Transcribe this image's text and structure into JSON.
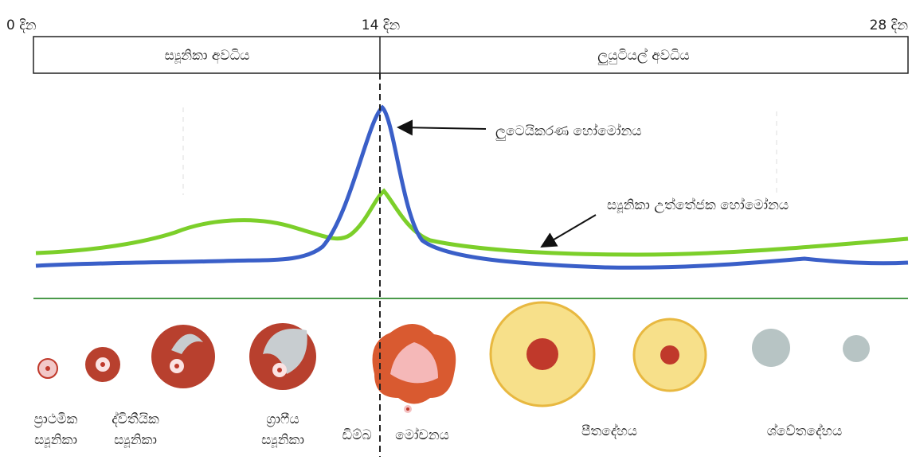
{
  "day_labels": [
    "0 දින",
    "14 දින",
    "28 දින"
  ],
  "phases": [
    "ස්‍යූනිකා අවධිය",
    "ලුයුටියල් අවධිය"
  ],
  "hormones": [
    {
      "label": "ලුටෙයිකරණ හෝමෝනය",
      "color": "#3a5fc8"
    },
    {
      "label": "ස්‍යූනිකා උත්තේජක හෝමෝනය",
      "color": "#7ccf2a"
    }
  ],
  "stages": [
    {
      "lines": [
        "ප්‍රාථමික",
        "ස්‍යූනිකා"
      ]
    },
    {
      "lines": [
        "ද්විතීයික",
        "ස්‍යූනිකා"
      ]
    },
    {
      "lines": [
        "ග්‍රාෆීය",
        "ස්‍යූනිකා"
      ]
    },
    {
      "lines": [
        "ඩිම්බ"
      ]
    },
    {
      "lines": [
        "මෝචනය"
      ]
    },
    {
      "lines": [
        "පීතදේහය"
      ]
    },
    {
      "lines": [
        "ශ්වේතදේහය"
      ]
    }
  ]
}
